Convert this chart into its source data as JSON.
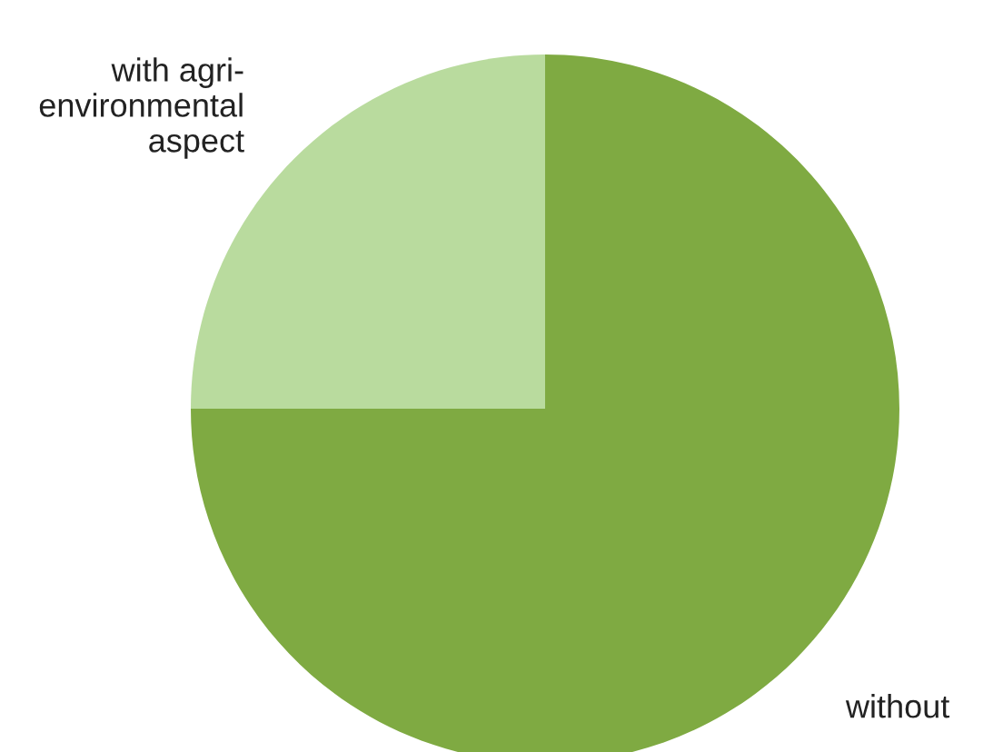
{
  "chart_data": {
    "type": "pie",
    "categories": [
      "with agri-\nenvironmental\naspect",
      "without"
    ],
    "values": [
      25,
      75
    ],
    "colors": [
      "#b9db9e",
      "#7faa42"
    ]
  }
}
